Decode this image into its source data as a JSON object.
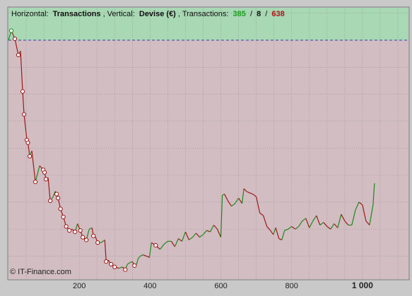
{
  "header": {
    "horizontal_label": "Horizontal:",
    "horizontal_value": "Transactions",
    "vertical_label": ", Vertical:",
    "vertical_value": "Devise (€)",
    "transactions_label": ", Transactions:",
    "count_win": "385",
    "count_sep1": "/",
    "count_neutral": "8",
    "count_sep2": "/",
    "count_loss": "638"
  },
  "copyright": "© IT-Finance.com",
  "colors": {
    "gain_zone": "#a8d8b4",
    "loss_zone": "#d2bdc2",
    "line_up": "#1a8a1a",
    "line_down": "#a01818",
    "marker_loss": "#9a1414",
    "marker_win": "#1a8a1a",
    "grid": "#8f8f8f",
    "zero_line": "#3b3ba8",
    "frame_bg": "#c9c9c9"
  },
  "chart_data": {
    "type": "line",
    "x_ticks": [
      200,
      400,
      600,
      800,
      1000
    ],
    "x_tick_labels": [
      "200",
      "400",
      "600",
      "800",
      "1 000"
    ],
    "xlim": [
      0,
      1130
    ],
    "ylim": [
      -8.85,
      1.2
    ],
    "zero_value": 0,
    "grid": true,
    "series": [
      {
        "x": [
          0,
          8,
          18,
          28,
          34,
          40,
          44,
          52,
          55,
          60,
          66,
          76,
          88,
          98,
          102,
          106,
          112,
          118,
          126,
          132,
          136,
          140,
          147,
          155,
          163,
          172,
          180,
          188,
          195,
          203,
          210,
          220,
          228,
          236,
          240,
          246,
          252,
          262,
          272,
          276,
          282,
          290,
          300,
          312,
          322,
          330,
          336,
          342,
          350,
          356,
          362,
          366,
          372,
          380,
          390,
          398,
          404,
          416,
          428,
          440,
          450,
          460,
          470,
          480,
          490,
          500,
          510,
          520,
          530,
          540,
          550,
          560,
          570,
          580,
          590,
          600,
          604,
          610,
          620,
          630,
          640,
          650,
          660,
          665,
          672,
          680,
          690,
          700,
          710,
          720,
          730,
          740,
          748,
          755,
          764,
          772,
          780,
          790,
          800,
          810,
          820,
          830,
          840,
          850,
          860,
          870,
          880,
          890,
          900,
          910,
          920,
          930,
          940,
          950,
          960,
          970,
          980,
          990,
          1000,
          1010,
          1020,
          1030,
          1034
        ],
        "values": [
          0.0,
          0.35,
          0.05,
          -0.55,
          -0.4,
          -1.9,
          -2.75,
          -3.7,
          -3.8,
          -4.3,
          -4.1,
          -5.25,
          -4.65,
          -4.8,
          -4.9,
          -5.15,
          -5.1,
          -5.95,
          -5.8,
          -5.6,
          -5.7,
          -5.85,
          -6.25,
          -6.55,
          -6.9,
          -7.05,
          -7.0,
          -7.1,
          -6.8,
          -7.05,
          -7.3,
          -7.4,
          -7.0,
          -6.95,
          -7.25,
          -7.3,
          -7.5,
          -7.5,
          -7.4,
          -8.2,
          -8.15,
          -8.3,
          -8.4,
          -8.45,
          -8.4,
          -8.5,
          -8.3,
          -8.25,
          -8.2,
          -8.35,
          -8.3,
          -8.1,
          -8.0,
          -7.95,
          -8.0,
          -8.05,
          -7.5,
          -7.6,
          -7.75,
          -7.55,
          -7.45,
          -7.45,
          -7.65,
          -7.35,
          -7.45,
          -7.1,
          -7.4,
          -7.3,
          -7.15,
          -7.3,
          -7.2,
          -7.05,
          -7.1,
          -6.85,
          -7.0,
          -7.3,
          -5.75,
          -5.7,
          -5.95,
          -6.15,
          -6.05,
          -5.85,
          -6.05,
          -5.5,
          -5.6,
          -5.65,
          -5.7,
          -5.8,
          -6.4,
          -6.5,
          -6.9,
          -7.05,
          -7.2,
          -6.95,
          -7.35,
          -7.4,
          -7.05,
          -7.0,
          -6.9,
          -7.0,
          -6.9,
          -6.7,
          -6.6,
          -6.95,
          -6.7,
          -6.5,
          -6.85,
          -6.75,
          -6.9,
          -7.0,
          -6.8,
          -6.95,
          -6.45,
          -6.7,
          -6.85,
          -6.85,
          -6.3,
          -6.0,
          -6.1,
          -6.7,
          -6.85,
          -6.1,
          -5.3
        ]
      }
    ]
  }
}
